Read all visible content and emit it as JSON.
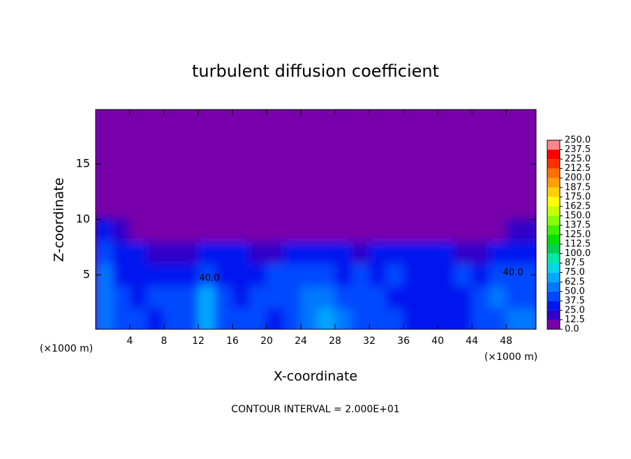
{
  "chart_data": {
    "type": "contour",
    "title": "turbulent diffusion coefficient",
    "x_label": "X-coordinate",
    "y_label": "Z-coordinate",
    "x_unit": "(×1000 m)",
    "y_unit": "(×1000 m)",
    "footer": "CONTOUR INTERVAL = 2.000E+01",
    "annotations": [
      "40.0",
      "40.0"
    ],
    "xlim": [
      0,
      51.5
    ],
    "xticks": [
      4,
      8,
      12,
      16,
      20,
      24,
      28,
      32,
      36,
      40,
      44,
      48
    ],
    "ylim": [
      0.1,
      19.9
    ],
    "yticks": [
      5,
      10,
      15
    ],
    "x": [
      1,
      3,
      5,
      7,
      9,
      11,
      13,
      15,
      17,
      19,
      21,
      23,
      25,
      27,
      29,
      31,
      33,
      35,
      37,
      39,
      41,
      43,
      45,
      47,
      49,
      51
    ],
    "y": [
      1,
      3,
      5,
      7,
      9
    ],
    "z": [
      [
        60,
        45,
        40,
        35,
        40,
        45,
        70,
        45,
        40,
        40,
        35,
        45,
        60,
        70,
        55,
        45,
        45,
        40,
        35,
        35,
        35,
        35,
        40,
        45,
        50,
        55
      ],
      [
        55,
        40,
        35,
        40,
        45,
        45,
        65,
        40,
        35,
        40,
        45,
        40,
        50,
        55,
        45,
        40,
        45,
        35,
        35,
        35,
        30,
        35,
        40,
        50,
        45,
        40
      ],
      [
        50,
        35,
        30,
        30,
        35,
        30,
        40,
        30,
        30,
        35,
        40,
        40,
        45,
        45,
        35,
        40,
        35,
        40,
        35,
        35,
        35,
        40,
        35,
        40,
        45,
        40
      ],
      [
        40,
        30,
        25,
        20,
        20,
        15,
        25,
        30,
        25,
        20,
        20,
        25,
        30,
        25,
        30,
        20,
        25,
        25,
        30,
        25,
        25,
        20,
        20,
        25,
        30,
        30
      ],
      [
        30,
        20,
        5,
        5,
        0,
        0,
        0,
        0,
        0,
        0,
        0,
        0,
        0,
        0,
        0,
        0,
        0,
        0,
        0,
        0,
        0,
        0,
        0,
        5,
        15,
        20
      ]
    ],
    "levels": [
      {
        "value": 0,
        "label": "0.0"
      },
      {
        "value": 12.5,
        "label": "12.5"
      },
      {
        "value": 25,
        "label": "25.0"
      },
      {
        "value": 37.5,
        "label": "37.5"
      },
      {
        "value": 50,
        "label": "50.0"
      },
      {
        "value": 62.5,
        "label": "62.5"
      },
      {
        "value": 75,
        "label": "75.0"
      },
      {
        "value": 87.5,
        "label": "87.5"
      },
      {
        "value": 100,
        "label": "100.0"
      },
      {
        "value": 112.5,
        "label": "112.5"
      },
      {
        "value": 125,
        "label": "125.0"
      },
      {
        "value": 137.5,
        "label": "137.5"
      },
      {
        "value": 150,
        "label": "150.0"
      },
      {
        "value": 162.5,
        "label": "162.5"
      },
      {
        "value": 175,
        "label": "175.0"
      },
      {
        "value": 187.5,
        "label": "187.5"
      },
      {
        "value": 200,
        "label": "200.0"
      },
      {
        "value": 212.5,
        "label": "212.5"
      },
      {
        "value": 225,
        "label": "225.0"
      },
      {
        "value": 237.5,
        "label": "237.5"
      },
      {
        "value": 250,
        "label": "250.0"
      }
    ],
    "colors": [
      "#7800aa",
      "#3000c8",
      "#0018f0",
      "#0048ff",
      "#0078ff",
      "#00a8ff",
      "#00d8e8",
      "#00e8a8",
      "#00d050",
      "#00e000",
      "#40f000",
      "#88ff00",
      "#c8ff00",
      "#ffff00",
      "#ffd000",
      "#ffa000",
      "#ff7000",
      "#ff3000",
      "#ff0000",
      "#ff8888"
    ]
  }
}
